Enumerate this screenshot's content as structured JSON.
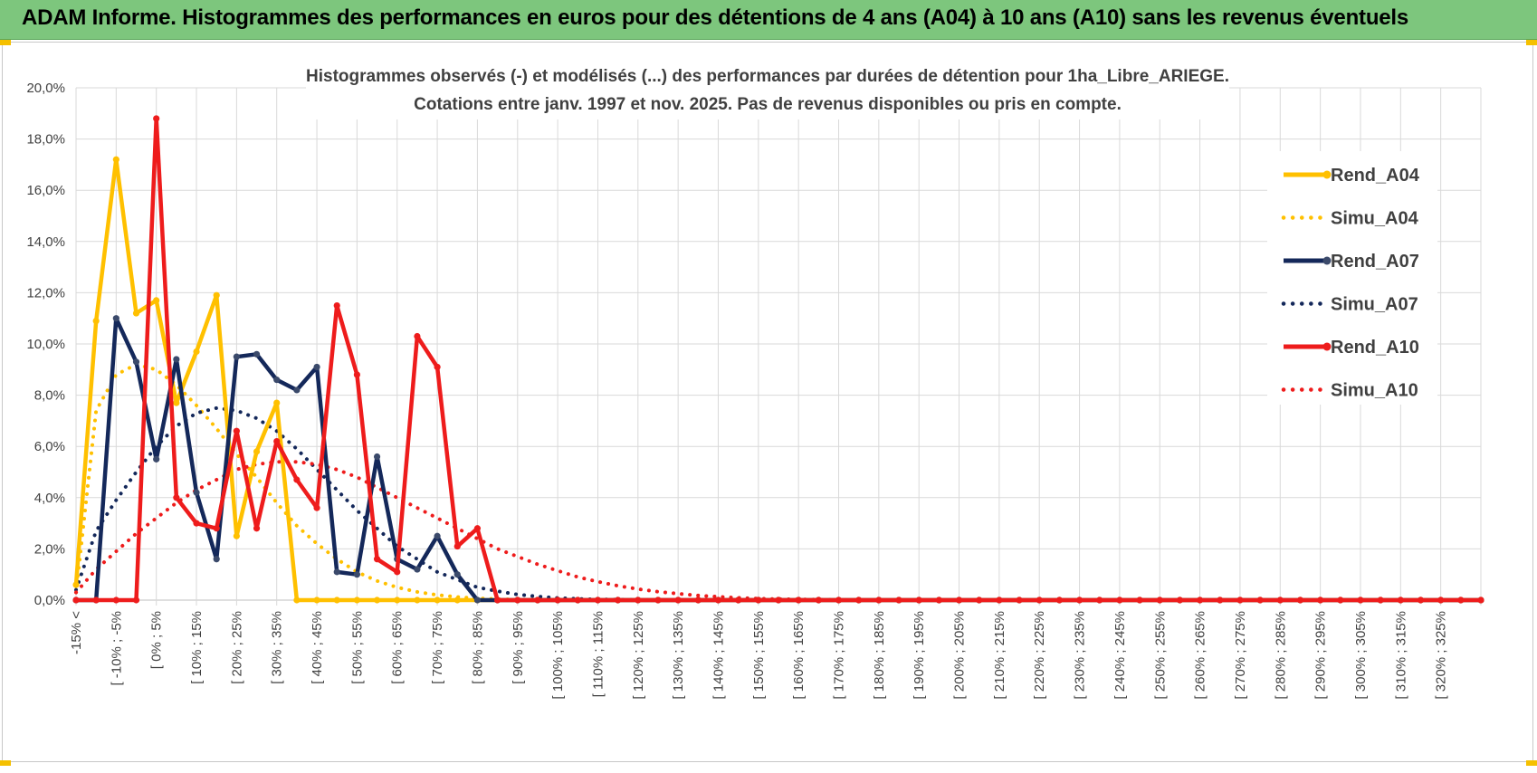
{
  "banner": {
    "title": "ADAM Informe. Histogrammes des performances en euros pour des détentions de 4 ans (A04) à 10 ans (A10) sans les revenus éventuels"
  },
  "chart_data": {
    "type": "line",
    "title_lines": [
      "Histogrammes observés (-) et modélisés (...) des performances par durées de détention pour 1ha_Libre_ARIEGE.",
      "Cotations entre janv. 1997 et nov. 2025. Pas de revenus disponibles ou pris en compte."
    ],
    "ylim": [
      0,
      20
    ],
    "ytick_labels": [
      "0,0%",
      "2,0%",
      "4,0%",
      "6,0%",
      "8,0%",
      "10,0%",
      "12,0%",
      "14,0%",
      "16,0%",
      "18,0%",
      "20,0%"
    ],
    "x_labels": [
      "-15% <",
      "[ -10% ; -5%",
      "[ 0% ; 5%",
      "[ 10% ; 15%",
      "[ 20% ; 25%",
      "[ 30% ; 35%",
      "[ 40% ; 45%",
      "[ 50% ; 55%",
      "[ 60% ; 65%",
      "[ 70% ; 75%",
      "[ 80% ; 85%",
      "[ 90% ; 95%",
      "[ 100% ; 105%",
      "[ 110% ; 115%",
      "[ 120% ; 125%",
      "[ 130% ; 135%",
      "[ 140% ; 145%",
      "[ 150% ; 155%",
      "[ 160% ; 165%",
      "[ 170% ; 175%",
      "[ 180% ; 185%",
      "[ 190% ; 195%",
      "[ 200% ; 205%",
      "[ 210% ; 215%",
      "[ 220% ; 225%",
      "[ 230% ; 235%",
      "[ 240% ; 245%",
      "[ 250% ; 255%",
      "[ 260% ; 265%",
      "[ 270% ; 275%",
      "[ 280% ; 285%",
      "[ 290% ; 295%",
      "[ 300% ; 305%",
      "[ 310% ; 315%",
      "[ 320% ; 325%"
    ],
    "grid": true,
    "legend_position": "right",
    "series": [
      {
        "name": "Rend_A04",
        "style": "solid",
        "color": "#ffc000",
        "values": [
          0.6,
          10.9,
          17.2,
          11.2,
          11.7,
          7.7,
          9.7,
          11.9,
          2.5,
          5.8,
          7.7,
          0,
          0,
          0,
          0,
          0,
          0,
          0,
          0,
          0,
          0,
          0,
          0,
          0,
          0,
          0,
          0,
          0,
          0,
          0,
          0,
          0,
          0,
          0,
          0,
          0,
          0,
          0,
          0,
          0,
          0,
          0,
          0,
          0,
          0,
          0,
          0,
          0,
          0,
          0,
          0,
          0,
          0,
          0,
          0,
          0,
          0,
          0,
          0,
          0,
          0,
          0,
          0,
          0,
          0,
          0,
          0,
          0,
          0,
          0,
          0
        ]
      },
      {
        "name": "Simu_A04",
        "style": "dotted",
        "color": "#ffc000",
        "values": [
          0.3,
          7.4,
          8.8,
          9.2,
          9.0,
          8.4,
          7.6,
          6.7,
          5.7,
          4.8,
          3.8,
          2.9,
          2.2,
          1.6,
          1.1,
          0.75,
          0.5,
          0.32,
          0.2,
          0.12,
          0.07,
          0.04,
          0.02,
          0.01,
          0,
          0,
          0,
          0,
          0,
          0,
          0,
          0,
          0,
          0,
          0,
          0,
          0,
          0,
          0,
          0,
          0,
          0,
          0,
          0,
          0,
          0,
          0,
          0,
          0,
          0,
          0,
          0,
          0,
          0,
          0,
          0,
          0,
          0,
          0,
          0,
          0,
          0,
          0,
          0,
          0,
          0,
          0,
          0,
          0,
          0,
          0
        ]
      },
      {
        "name": "Rend_A07",
        "style": "solid",
        "color": "#14285a",
        "values": [
          0,
          0,
          11.0,
          9.3,
          5.5,
          9.4,
          4.2,
          1.6,
          9.5,
          9.6,
          8.6,
          8.2,
          9.1,
          1.1,
          1.0,
          5.6,
          1.6,
          1.2,
          2.5,
          1.0,
          0,
          0,
          0,
          0,
          0,
          0,
          0,
          0,
          0,
          0,
          0,
          0,
          0,
          0,
          0,
          0,
          0,
          0,
          0,
          0,
          0,
          0,
          0,
          0,
          0,
          0,
          0,
          0,
          0,
          0,
          0,
          0,
          0,
          0,
          0,
          0,
          0,
          0,
          0,
          0,
          0,
          0,
          0,
          0,
          0,
          0,
          0,
          0,
          0,
          0,
          0
        ]
      },
      {
        "name": "Simu_A07",
        "style": "dotted",
        "color": "#14285a",
        "values": [
          0.4,
          2.7,
          3.9,
          5.0,
          6.0,
          6.8,
          7.3,
          7.5,
          7.4,
          7.1,
          6.6,
          5.9,
          5.1,
          4.3,
          3.5,
          2.8,
          2.1,
          1.6,
          1.1,
          0.8,
          0.5,
          0.35,
          0.22,
          0.14,
          0.08,
          0.05,
          0.03,
          0.02,
          0.01,
          0,
          0,
          0,
          0,
          0,
          0,
          0,
          0,
          0,
          0,
          0,
          0,
          0,
          0,
          0,
          0,
          0,
          0,
          0,
          0,
          0,
          0,
          0,
          0,
          0,
          0,
          0,
          0,
          0,
          0,
          0,
          0,
          0,
          0,
          0,
          0,
          0,
          0,
          0,
          0,
          0,
          0
        ]
      },
      {
        "name": "Rend_A10",
        "style": "solid",
        "color": "#ee1c1c",
        "values": [
          0,
          0,
          0,
          0,
          18.8,
          4.0,
          3.0,
          2.8,
          6.6,
          2.8,
          6.2,
          4.7,
          3.6,
          11.5,
          8.8,
          1.6,
          1.1,
          10.3,
          9.1,
          2.1,
          2.8,
          0,
          0,
          0,
          0,
          0,
          0,
          0,
          0,
          0,
          0,
          0,
          0,
          0,
          0,
          0,
          0,
          0,
          0,
          0,
          0,
          0,
          0,
          0,
          0,
          0,
          0,
          0,
          0,
          0,
          0,
          0,
          0,
          0,
          0,
          0,
          0,
          0,
          0,
          0,
          0,
          0,
          0,
          0,
          0,
          0,
          0,
          0,
          0,
          0,
          0
        ]
      },
      {
        "name": "Simu_A10",
        "style": "dotted",
        "color": "#ee1c1c",
        "values": [
          0.3,
          1.2,
          1.9,
          2.6,
          3.2,
          3.8,
          4.3,
          4.7,
          5.1,
          5.3,
          5.4,
          5.4,
          5.3,
          5.1,
          4.8,
          4.4,
          4.0,
          3.6,
          3.2,
          2.8,
          2.4,
          2.0,
          1.7,
          1.4,
          1.15,
          0.9,
          0.72,
          0.56,
          0.43,
          0.33,
          0.25,
          0.18,
          0.13,
          0.09,
          0.06,
          0.04,
          0.03,
          0.02,
          0.01,
          0,
          0,
          0,
          0,
          0,
          0,
          0,
          0,
          0,
          0,
          0,
          0,
          0,
          0,
          0,
          0,
          0,
          0,
          0,
          0,
          0,
          0,
          0,
          0,
          0,
          0,
          0,
          0,
          0,
          0,
          0,
          0
        ]
      }
    ]
  }
}
